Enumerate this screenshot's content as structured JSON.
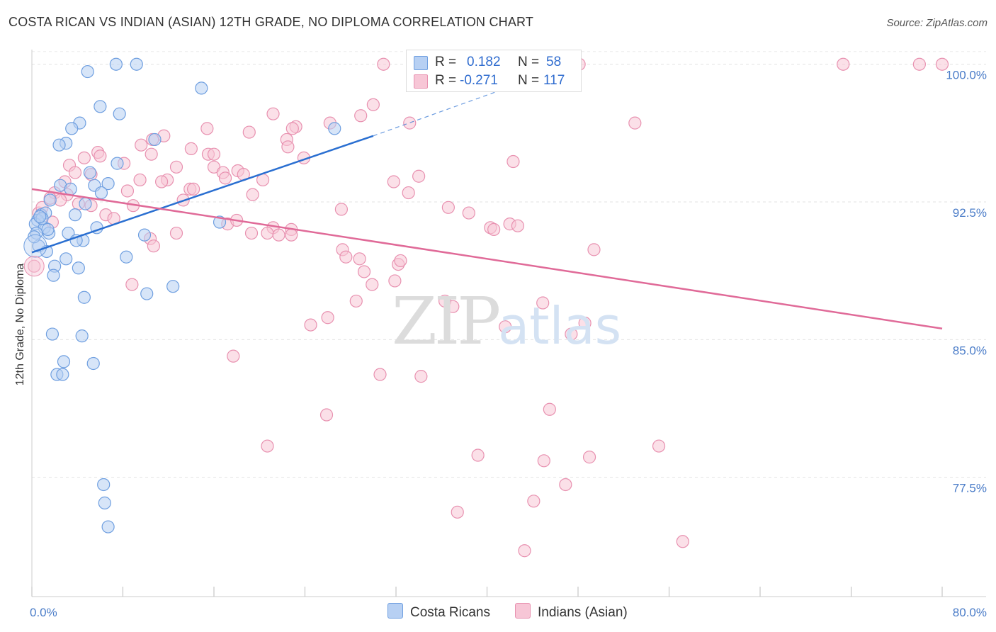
{
  "title": "COSTA RICAN VS INDIAN (ASIAN) 12TH GRADE, NO DIPLOMA CORRELATION CHART",
  "source": "Source: ZipAtlas.com",
  "legend": {
    "r_label": "R =",
    "n_label": "N =",
    "rows": [
      {
        "series": "Costa Ricans",
        "r": "0.182",
        "n": "58"
      },
      {
        "series": "Indians (Asian)",
        "r": "-0.271",
        "n": "117"
      }
    ]
  },
  "watermark": {
    "zip": "ZIP",
    "atlas": "atlas"
  },
  "colors": {
    "blue": "#6f9fe0",
    "blue_fill": "#b7d0f3",
    "blue_line": "#2a6fd1",
    "pink": "#e891b0",
    "pink_fill": "#f7c6d6",
    "pink_line": "#e06a98"
  },
  "chart_data": {
    "type": "scatter",
    "title": "COSTA RICAN VS INDIAN (ASIAN) 12TH GRADE, NO DIPLOMA CORRELATION CHART",
    "xlabel": "",
    "ylabel": "12th Grade, No Diploma",
    "xlim": [
      0,
      80
    ],
    "ylim": [
      71.0,
      100.8
    ],
    "x_tick_labels": [
      "0.0%",
      "80.0%"
    ],
    "y_ticks": [
      77.5,
      85.0,
      92.5,
      100.0
    ],
    "y_tick_labels": [
      "77.5%",
      "85.0%",
      "92.5%",
      "100.0%"
    ],
    "grid": true,
    "series": [
      {
        "name": "Costa Ricans",
        "color": "blue",
        "points": [
          [
            7.4,
            100.0
          ],
          [
            9.2,
            100.0
          ],
          [
            4.9,
            99.6
          ],
          [
            14.9,
            98.7
          ],
          [
            6.0,
            97.7
          ],
          [
            7.7,
            97.3
          ],
          [
            4.2,
            96.8
          ],
          [
            3.5,
            96.5
          ],
          [
            26.6,
            96.5
          ],
          [
            10.8,
            95.9
          ],
          [
            3.0,
            95.7
          ],
          [
            2.4,
            95.6
          ],
          [
            7.5,
            94.6
          ],
          [
            5.1,
            94.1
          ],
          [
            6.7,
            93.5
          ],
          [
            5.5,
            93.4
          ],
          [
            2.5,
            93.4
          ],
          [
            3.4,
            93.2
          ],
          [
            6.1,
            93.0
          ],
          [
            1.6,
            92.6
          ],
          [
            4.7,
            92.4
          ],
          [
            0.8,
            91.8
          ],
          [
            1.2,
            91.9
          ],
          [
            0.5,
            91.5
          ],
          [
            0.3,
            91.3
          ],
          [
            3.8,
            91.8
          ],
          [
            1.1,
            91.1
          ],
          [
            0.4,
            90.8
          ],
          [
            1.5,
            90.8
          ],
          [
            16.5,
            91.4
          ],
          [
            5.7,
            91.1
          ],
          [
            3.2,
            90.8
          ],
          [
            9.9,
            90.7
          ],
          [
            4.5,
            90.4
          ],
          [
            3.9,
            90.4
          ],
          [
            0.6,
            90.1
          ],
          [
            1.3,
            89.8
          ],
          [
            3.0,
            89.4
          ],
          [
            8.3,
            89.5
          ],
          [
            2.0,
            89.0
          ],
          [
            4.1,
            88.9
          ],
          [
            1.9,
            88.5
          ],
          [
            12.4,
            87.9
          ],
          [
            10.1,
            87.5
          ],
          [
            4.6,
            87.3
          ],
          [
            1.8,
            85.3
          ],
          [
            4.4,
            85.2
          ],
          [
            2.8,
            83.8
          ],
          [
            5.4,
            83.7
          ],
          [
            2.2,
            83.1
          ],
          [
            2.7,
            83.1
          ],
          [
            6.3,
            77.1
          ],
          [
            6.4,
            76.1
          ],
          [
            6.7,
            74.8
          ],
          [
            0.2,
            90.6
          ],
          [
            0.9,
            91.6
          ],
          [
            1.4,
            91.0
          ],
          [
            0.7,
            91.7
          ]
        ]
      },
      {
        "name": "Indians (Asian)",
        "color": "pink",
        "points": [
          [
            30.9,
            100.0
          ],
          [
            48.1,
            100.0
          ],
          [
            71.3,
            100.0
          ],
          [
            78.0,
            100.0
          ],
          [
            80.0,
            100.0
          ],
          [
            30.0,
            97.8
          ],
          [
            28.9,
            97.2
          ],
          [
            21.2,
            97.3
          ],
          [
            26.2,
            96.8
          ],
          [
            33.2,
            96.8
          ],
          [
            23.2,
            96.6
          ],
          [
            22.9,
            96.5
          ],
          [
            15.4,
            96.5
          ],
          [
            19.1,
            96.3
          ],
          [
            11.6,
            96.1
          ],
          [
            10.6,
            95.9
          ],
          [
            9.6,
            95.6
          ],
          [
            22.4,
            95.9
          ],
          [
            14.0,
            95.4
          ],
          [
            22.5,
            95.5
          ],
          [
            15.5,
            95.1
          ],
          [
            16.0,
            95.1
          ],
          [
            5.8,
            95.2
          ],
          [
            6.0,
            95.0
          ],
          [
            10.5,
            95.1
          ],
          [
            4.6,
            94.9
          ],
          [
            8.1,
            94.6
          ],
          [
            3.3,
            94.5
          ],
          [
            12.7,
            94.4
          ],
          [
            23.9,
            94.9
          ],
          [
            16.0,
            94.4
          ],
          [
            16.8,
            94.1
          ],
          [
            18.1,
            94.2
          ],
          [
            18.6,
            94.0
          ],
          [
            3.8,
            94.1
          ],
          [
            5.2,
            94.0
          ],
          [
            2.9,
            93.6
          ],
          [
            9.5,
            93.7
          ],
          [
            11.9,
            93.7
          ],
          [
            11.4,
            93.6
          ],
          [
            17.0,
            93.8
          ],
          [
            20.3,
            93.7
          ],
          [
            31.8,
            93.6
          ],
          [
            13.9,
            93.2
          ],
          [
            14.2,
            93.2
          ],
          [
            8.4,
            93.1
          ],
          [
            2.0,
            93.0
          ],
          [
            3.1,
            92.9
          ],
          [
            1.6,
            92.7
          ],
          [
            19.4,
            92.9
          ],
          [
            34.0,
            93.9
          ],
          [
            33.1,
            93.0
          ],
          [
            36.6,
            92.2
          ],
          [
            38.4,
            91.9
          ],
          [
            13.3,
            92.6
          ],
          [
            4.1,
            92.4
          ],
          [
            8.9,
            92.3
          ],
          [
            5.2,
            92.3
          ],
          [
            27.2,
            92.1
          ],
          [
            6.5,
            91.8
          ],
          [
            7.2,
            91.6
          ],
          [
            17.2,
            91.3
          ],
          [
            18.0,
            91.5
          ],
          [
            21.2,
            91.1
          ],
          [
            22.8,
            91.0
          ],
          [
            19.3,
            90.8
          ],
          [
            20.7,
            90.8
          ],
          [
            21.7,
            90.7
          ],
          [
            22.8,
            90.7
          ],
          [
            12.7,
            90.8
          ],
          [
            10.4,
            90.5
          ],
          [
            40.3,
            91.1
          ],
          [
            40.6,
            91.0
          ],
          [
            42.0,
            91.3
          ],
          [
            42.7,
            91.2
          ],
          [
            10.7,
            90.1
          ],
          [
            0.2,
            89.0
          ],
          [
            27.3,
            89.9
          ],
          [
            27.6,
            89.5
          ],
          [
            28.8,
            89.4
          ],
          [
            32.2,
            89.1
          ],
          [
            32.4,
            89.3
          ],
          [
            49.4,
            89.9
          ],
          [
            29.2,
            88.7
          ],
          [
            29.9,
            88.0
          ],
          [
            8.8,
            88.0
          ],
          [
            31.9,
            88.2
          ],
          [
            28.5,
            87.1
          ],
          [
            36.3,
            87.1
          ],
          [
            37.0,
            86.8
          ],
          [
            44.9,
            87.0
          ],
          [
            26.0,
            86.2
          ],
          [
            24.5,
            85.8
          ],
          [
            41.6,
            85.7
          ],
          [
            47.4,
            85.3
          ],
          [
            48.6,
            85.9
          ],
          [
            17.7,
            84.1
          ],
          [
            30.6,
            83.1
          ],
          [
            34.2,
            83.0
          ],
          [
            25.9,
            80.9
          ],
          [
            20.7,
            79.2
          ],
          [
            45.5,
            81.2
          ],
          [
            39.2,
            78.7
          ],
          [
            45.0,
            78.4
          ],
          [
            49.0,
            78.6
          ],
          [
            55.1,
            79.2
          ],
          [
            46.9,
            77.1
          ],
          [
            44.1,
            76.2
          ],
          [
            37.4,
            75.6
          ],
          [
            43.3,
            73.5
          ],
          [
            57.2,
            74.0
          ],
          [
            42.3,
            94.7
          ],
          [
            53.0,
            96.8
          ],
          [
            0.6,
            91.9
          ],
          [
            1.8,
            91.4
          ],
          [
            0.9,
            92.2
          ],
          [
            2.5,
            92.6
          ]
        ]
      }
    ],
    "trend_lines": [
      {
        "series": "Costa Ricans",
        "x_start": 0.0,
        "y_start": 89.75,
        "x_solid_end": 30.0,
        "y_solid_end": 96.1,
        "x_dash_end": 48.0,
        "y_dash_end": 100.1
      },
      {
        "series": "Indians (Asian)",
        "x_start": 0.0,
        "y_start": 93.2,
        "x_end": 80.0,
        "y_end": 85.6
      }
    ]
  }
}
